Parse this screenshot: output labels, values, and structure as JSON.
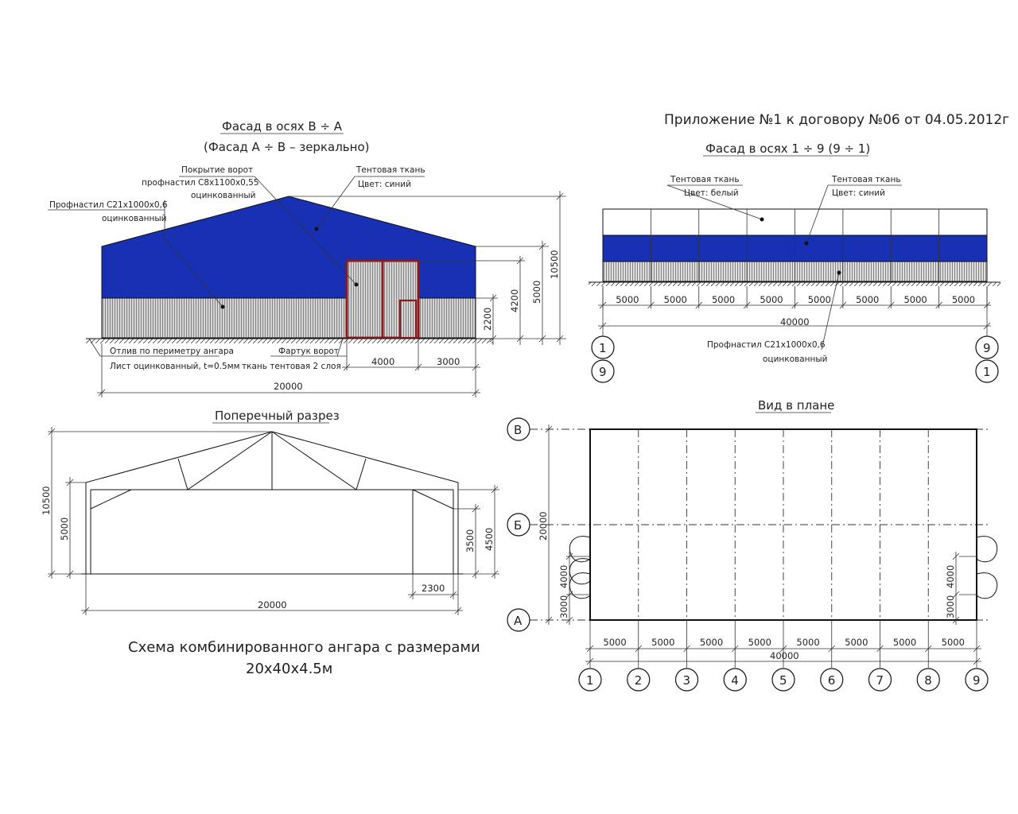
{
  "header": {
    "appendix": "Приложение №1 к договору №06 от 04.05.2012г"
  },
  "colors": {
    "tent_blue": "#1730b4",
    "door_frame": "#8b1a1a",
    "profile_grey": "#b8b8b8"
  },
  "facade_ba": {
    "title": "Фасад в осях В ÷ А",
    "subtitle": "(Фасад А ÷ В – зеркально)",
    "gate_cover_line1": "Покрытие ворот",
    "gate_cover_line2": "профнастил С8х1100х0,55",
    "gate_cover_line3": "оцинкованный",
    "tent_line1": "Тентовая ткань",
    "tent_line2": "Цвет: синий",
    "profile_line1": "Профнастил С21х1000х0,6",
    "profile_line2": "оцинкованный",
    "drip_line1": "Отлив по периметру ангара",
    "drip_line2": "Лист оцинкованный, t=0.5мм",
    "apron_line1": "Фартук ворот",
    "apron_line2": "ткань тентовая 2 слоя",
    "dims": {
      "h_total": "10500",
      "h_5000": "5000",
      "h_4200": "4200",
      "h_2200": "2200",
      "w_4000": "4000",
      "w_3000": "3000",
      "w_total": "20000"
    }
  },
  "facade_19": {
    "title": "Фасад в осях 1 ÷ 9 (9 ÷ 1)",
    "tent_white_line1": "Тентовая ткань",
    "tent_white_line2": "Цвет: белый",
    "tent_blue_line1": "Тентовая ткань",
    "tent_blue_line2": "Цвет: синий",
    "profile_line1": "Профнастил С21х1000х0,6",
    "profile_line2": "оцинкованный",
    "bays": [
      "5000",
      "5000",
      "5000",
      "5000",
      "5000",
      "5000",
      "5000",
      "5000"
    ],
    "total": "40000",
    "axis_left_top": "1",
    "axis_left_bottom": "9",
    "axis_right_top": "9",
    "axis_right_bottom": "1"
  },
  "section": {
    "title": "Поперечный разрез",
    "h_total": "10500",
    "h_left": "5000",
    "h_right_inner": "3500",
    "h_right_outer": "4500",
    "w_2300": "2300",
    "w_total": "20000"
  },
  "plan": {
    "title": "Вид в плане",
    "axis_rows": [
      "В",
      "Б",
      "А"
    ],
    "height_total": "20000",
    "left_dim_4000": "4000",
    "left_dim_3000": "3000",
    "right_dim_4000": "4000",
    "right_dim_3000": "3000",
    "bays": [
      "5000",
      "5000",
      "5000",
      "5000",
      "5000",
      "5000",
      "5000",
      "5000"
    ],
    "total": "40000",
    "axis_cols": [
      "1",
      "2",
      "3",
      "4",
      "5",
      "6",
      "7",
      "8",
      "9"
    ]
  },
  "caption": {
    "line1": "Схема комбинированного ангара с размерами",
    "line2": "20x40x4.5м"
  }
}
